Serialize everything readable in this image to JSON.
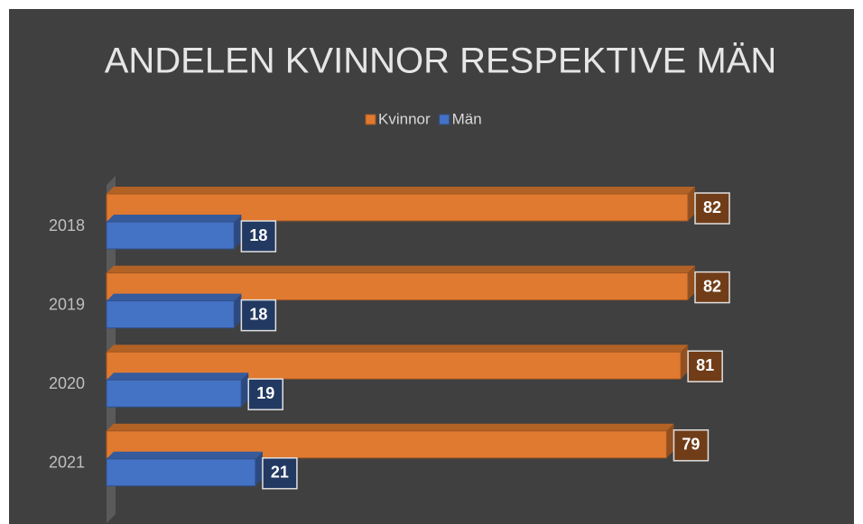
{
  "chart_data": {
    "type": "bar3d_horizontal",
    "title": "ANDELEN KVINNOR RESPEKTIVE MÄN",
    "categories": [
      "2018",
      "2019",
      "2020",
      "2021"
    ],
    "series": [
      {
        "name": "Kvinnor",
        "color": "#e07a30",
        "values": [
          82,
          82,
          81,
          79
        ]
      },
      {
        "name": "Män",
        "color": "#4472c4",
        "values": [
          18,
          18,
          19,
          21
        ]
      }
    ],
    "legend": "top"
  }
}
